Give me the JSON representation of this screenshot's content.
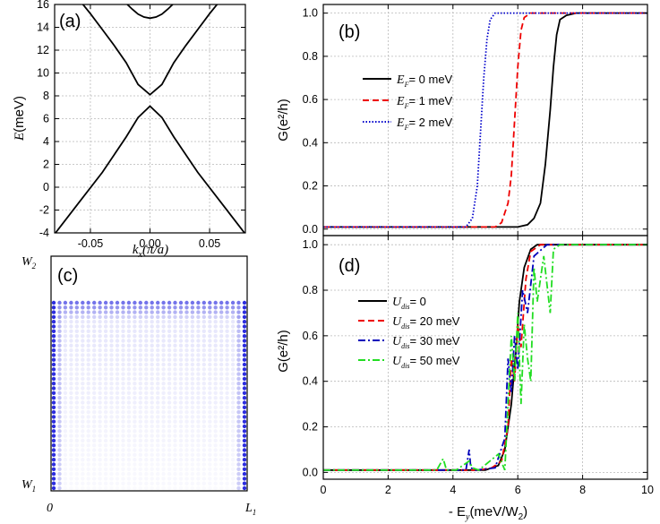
{
  "chart_data": [
    {
      "id": "a",
      "panel_label": "(a)",
      "type": "line",
      "title": "",
      "ylabel_main": "E",
      "ylabel_unit": "(meV)",
      "xlabel_main": "k",
      "xlabel_sub": "x",
      "xlabel_unit": "(π/a)",
      "xlim": [
        -0.08,
        0.08
      ],
      "ylim": [
        -4,
        16
      ],
      "xticks": [
        -0.05,
        0.0,
        0.05
      ],
      "xtick_labels": [
        "-0.05",
        "0.00",
        "0.05"
      ],
      "yticks": [
        -4,
        -2,
        0,
        2,
        4,
        6,
        8,
        10,
        12,
        14,
        16
      ],
      "ytick_labels": [
        "-4",
        "-2",
        "0",
        "2",
        "4",
        "6",
        "8",
        "10",
        "12",
        "14",
        "16"
      ],
      "grid": true,
      "series": [
        {
          "x": [
            -0.08,
            -0.06,
            -0.04,
            -0.02,
            -0.01,
            0.0,
            0.01,
            0.02,
            0.04,
            0.06,
            0.08
          ],
          "y": [
            -4.1,
            -1.4,
            1.3,
            4.4,
            6.1,
            7.1,
            6.1,
            4.4,
            1.3,
            -1.4,
            -4.1
          ]
        },
        {
          "x": [
            -0.064,
            -0.05,
            -0.04,
            -0.03,
            -0.02,
            -0.01,
            0.0,
            0.01,
            0.02,
            0.03,
            0.04,
            0.05,
            0.064
          ],
          "y": [
            17.0,
            15.2,
            13.8,
            12.4,
            10.9,
            9.0,
            8.1,
            9.0,
            10.9,
            12.4,
            13.8,
            15.2,
            17.0
          ]
        },
        {
          "x": [
            -0.019,
            -0.015,
            -0.01,
            -0.005,
            0.0,
            0.005,
            0.01,
            0.015,
            0.019
          ],
          "y": [
            16.0,
            15.6,
            15.15,
            14.9,
            14.8,
            14.9,
            15.15,
            15.6,
            16.0
          ]
        }
      ]
    },
    {
      "id": "b",
      "panel_label": "(b)",
      "type": "line",
      "title": "",
      "ylabel": "G(e²/h)",
      "xlim": [
        0,
        10
      ],
      "ylim": [
        -0.03,
        1.04
      ],
      "xticks": [
        0,
        2,
        4,
        6,
        8,
        10
      ],
      "yticks": [
        0.0,
        0.2,
        0.4,
        0.6,
        0.8,
        1.0
      ],
      "ytick_labels": [
        "0.0",
        "0.2",
        "0.4",
        "0.6",
        "0.8",
        "1.0"
      ],
      "grid": true,
      "legend_position": "center-left",
      "series": [
        {
          "name_sym": "E",
          "name_sub": "F",
          "name_rest": "= 0 meV",
          "color": "#000000",
          "dash": "solid",
          "x": [
            0,
            6.0,
            6.3,
            6.5,
            6.7,
            6.85,
            7.0,
            7.1,
            7.2,
            7.3,
            7.5,
            7.8,
            10
          ],
          "y": [
            0.01,
            0.01,
            0.02,
            0.05,
            0.12,
            0.3,
            0.55,
            0.75,
            0.9,
            0.97,
            0.99,
            1.0,
            1.0
          ]
        },
        {
          "name_sym": "E",
          "name_sub": "F",
          "name_rest": "= 1 meV",
          "color": "#ee0000",
          "dash": "7 4",
          "x": [
            0,
            5.3,
            5.5,
            5.7,
            5.8,
            5.9,
            6.0,
            6.1,
            6.2,
            6.4,
            10
          ],
          "y": [
            0.01,
            0.01,
            0.03,
            0.12,
            0.25,
            0.5,
            0.75,
            0.92,
            0.98,
            1.0,
            1.0
          ]
        },
        {
          "name_sym": "E",
          "name_sub": "F",
          "name_rest": "= 2 meV",
          "color": "#0000cc",
          "dash": "1.5 2",
          "x": [
            0,
            4.4,
            4.6,
            4.75,
            4.85,
            4.95,
            5.05,
            5.15,
            5.3,
            5.5,
            10
          ],
          "y": [
            0.01,
            0.01,
            0.05,
            0.2,
            0.45,
            0.7,
            0.88,
            0.97,
            1.0,
            1.0,
            1.0
          ]
        }
      ]
    },
    {
      "id": "c",
      "panel_label": "(c)",
      "type": "heatmap",
      "title": "",
      "corner_labels": {
        "top_left_sym": "W",
        "top_left_sub": "2",
        "bottom_left_sym": "W",
        "bottom_left_sub": "1",
        "origin": "0",
        "bottom_right_sym": "L",
        "bottom_right_sub": "1"
      },
      "color": "#2222dd",
      "description_values": {
        "edge_columns_intensity": 0.95,
        "top_band_intensity": 0.55,
        "interior_intensity": 0.08
      }
    },
    {
      "id": "d",
      "panel_label": "(d)",
      "type": "line",
      "title": "",
      "ylabel": "G(e²/h)",
      "xlabel_prefix": "- E",
      "xlabel_sub": "y",
      "xlabel_unit": "(meV/W",
      "xlabel_unit_sub": "2",
      "xlabel_close": ")",
      "xlim": [
        0,
        10
      ],
      "ylim": [
        -0.03,
        1.04
      ],
      "xticks": [
        0,
        2,
        4,
        6,
        8,
        10
      ],
      "xtick_labels": [
        "0",
        "2",
        "4",
        "6",
        "8",
        "10"
      ],
      "yticks": [
        0.0,
        0.2,
        0.4,
        0.6,
        0.8,
        1.0
      ],
      "ytick_labels": [
        "0.0",
        "0.2",
        "0.4",
        "0.6",
        "0.8",
        "1.0"
      ],
      "grid": true,
      "legend_position": "center-left",
      "series": [
        {
          "name_sym": "U",
          "name_sub": "dis",
          "name_rest": "= 0",
          "color": "#000000",
          "dash": "solid",
          "x": [
            0,
            5.0,
            5.4,
            5.6,
            5.8,
            5.95,
            6.05,
            6.2,
            6.4,
            6.6,
            10
          ],
          "y": [
            0.01,
            0.01,
            0.03,
            0.1,
            0.3,
            0.55,
            0.75,
            0.9,
            0.98,
            1.0,
            1.0
          ]
        },
        {
          "name_sym": "U",
          "name_sub": "dis",
          "name_rest": "= 20 meV",
          "color": "#ee0000",
          "dash": "7 4",
          "x": [
            0,
            4.8,
            5.2,
            5.5,
            5.7,
            5.8,
            5.9,
            6.0,
            6.1,
            6.25,
            6.4,
            6.7,
            10
          ],
          "y": [
            0.01,
            0.01,
            0.02,
            0.05,
            0.2,
            0.5,
            0.4,
            0.65,
            0.55,
            0.85,
            0.97,
            1.0,
            1.0
          ]
        },
        {
          "name_sym": "U",
          "name_sub": "dis",
          "name_rest": "= 30 meV",
          "color": "#0000bb",
          "dash": "8 3 2 3",
          "x": [
            0,
            4.4,
            4.5,
            4.55,
            4.7,
            5.3,
            5.6,
            5.7,
            5.8,
            5.9,
            6.0,
            6.15,
            6.3,
            6.5,
            6.9,
            10
          ],
          "y": [
            0.01,
            0.01,
            0.1,
            0.02,
            0.01,
            0.02,
            0.15,
            0.5,
            0.35,
            0.6,
            0.45,
            0.8,
            0.7,
            0.95,
            1.0,
            1.0
          ]
        },
        {
          "name_sym": "U",
          "name_sub": "dis",
          "name_rest": "= 50 meV",
          "color": "#22dd22",
          "dash": "8 3 2 3",
          "x": [
            0,
            3.5,
            3.7,
            3.8,
            4.1,
            4.5,
            4.6,
            4.8,
            5.4,
            5.6,
            5.8,
            5.9,
            6.0,
            6.1,
            6.2,
            6.3,
            6.4,
            6.5,
            6.6,
            6.8,
            7.0,
            7.1,
            7.3,
            8.0,
            10
          ],
          "y": [
            0.01,
            0.01,
            0.06,
            0.01,
            0.01,
            0.05,
            0.02,
            0.01,
            0.08,
            0.01,
            0.6,
            0.4,
            0.7,
            0.3,
            0.65,
            0.5,
            0.4,
            0.9,
            0.75,
            0.95,
            0.7,
            0.98,
            1.0,
            1.0,
            1.0
          ]
        }
      ]
    }
  ]
}
